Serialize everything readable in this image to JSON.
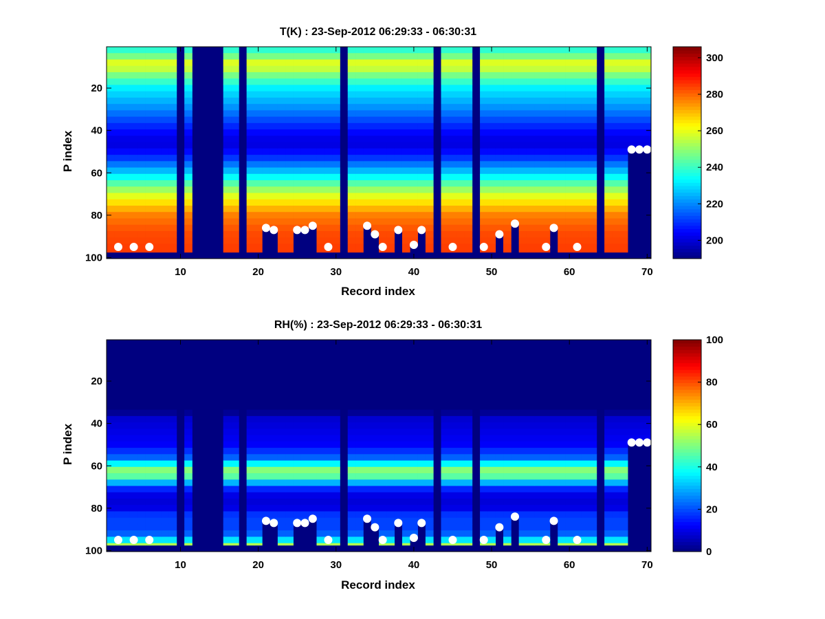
{
  "figure": {
    "background": "#ffffff",
    "colormap": "jet"
  },
  "chart_data": [
    {
      "type": "heatmap",
      "title": "T(K) : 23-Sep-2012 06:29:33 - 06:30:31",
      "xlabel": "Record index",
      "ylabel": "P index",
      "xlim": [
        0.5,
        70.5
      ],
      "ylim": [
        0.5,
        100.5
      ],
      "y_reversed": true,
      "x_ticks": [
        "10",
        "20",
        "30",
        "40",
        "50",
        "60",
        "70"
      ],
      "y_ticks": [
        "20",
        "40",
        "60",
        "80",
        "100"
      ],
      "profile_by_p_index": [
        [
          1,
          236
        ],
        [
          6,
          250
        ],
        [
          9,
          263
        ],
        [
          12,
          252
        ],
        [
          20,
          232
        ],
        [
          30,
          220
        ],
        [
          40,
          206
        ],
        [
          46,
          200
        ],
        [
          52,
          208
        ],
        [
          60,
          228
        ],
        [
          66,
          246
        ],
        [
          72,
          262
        ],
        [
          80,
          277
        ],
        [
          88,
          283
        ],
        [
          98,
          285
        ]
      ],
      "missing_records": [
        10,
        12,
        13,
        14,
        15,
        18,
        31,
        43,
        48,
        64
      ],
      "surface_p_index_by_record": [
        97,
        97,
        97,
        97,
        97,
        97,
        97,
        97,
        97,
        0,
        97,
        0,
        0,
        0,
        0,
        97,
        97,
        0,
        97,
        97,
        86,
        87,
        97,
        97,
        87,
        87,
        85,
        97,
        97,
        97,
        0,
        97,
        97,
        85,
        89,
        97,
        97,
        87,
        97,
        94,
        87,
        97,
        0,
        97,
        97,
        97,
        97,
        0,
        97,
        97,
        89,
        97,
        84,
        97,
        97,
        97,
        97,
        86,
        97,
        97,
        97,
        97,
        97,
        0,
        97,
        97,
        97,
        49,
        49,
        49
      ],
      "marker_points": [
        [
          2,
          95
        ],
        [
          4,
          95
        ],
        [
          6,
          95
        ],
        [
          21,
          86
        ],
        [
          22,
          87
        ],
        [
          25,
          87
        ],
        [
          26,
          87
        ],
        [
          27,
          85
        ],
        [
          29,
          95
        ],
        [
          34,
          85
        ],
        [
          35,
          89
        ],
        [
          36,
          95
        ],
        [
          38,
          87
        ],
        [
          40,
          94
        ],
        [
          41,
          87
        ],
        [
          45,
          95
        ],
        [
          49,
          95
        ],
        [
          51,
          89
        ],
        [
          53,
          84
        ],
        [
          57,
          95
        ],
        [
          58,
          86
        ],
        [
          61,
          95
        ],
        [
          68,
          49
        ],
        [
          69,
          49
        ],
        [
          70,
          49
        ]
      ],
      "colorbar": {
        "clim": [
          190,
          306
        ],
        "ticks": [
          "200",
          "220",
          "240",
          "260",
          "280",
          "300"
        ]
      }
    },
    {
      "type": "heatmap",
      "title": "RH(%) : 23-Sep-2012 06:29:33 - 06:30:31",
      "xlabel": "Record index",
      "ylabel": "P index",
      "xlim": [
        0.5,
        70.5
      ],
      "ylim": [
        0.5,
        100.5
      ],
      "y_reversed": true,
      "x_ticks": [
        "10",
        "20",
        "30",
        "40",
        "50",
        "60",
        "70"
      ],
      "y_ticks": [
        "20",
        "40",
        "60",
        "80",
        "100"
      ],
      "profile_by_p_index": [
        [
          1,
          0
        ],
        [
          34,
          0
        ],
        [
          38,
          8
        ],
        [
          44,
          10
        ],
        [
          50,
          12
        ],
        [
          56,
          22
        ],
        [
          60,
          42
        ],
        [
          63,
          55
        ],
        [
          66,
          42
        ],
        [
          70,
          18
        ],
        [
          75,
          8
        ],
        [
          80,
          10
        ],
        [
          84,
          20
        ],
        [
          88,
          18
        ],
        [
          92,
          22
        ],
        [
          95,
          35
        ],
        [
          98,
          65
        ]
      ],
      "missing_records": [
        10,
        12,
        13,
        14,
        15,
        18,
        31,
        43,
        48,
        64
      ],
      "surface_p_index_by_record": [
        97,
        97,
        97,
        97,
        97,
        97,
        97,
        97,
        97,
        0,
        97,
        0,
        0,
        0,
        0,
        97,
        97,
        0,
        97,
        97,
        86,
        87,
        97,
        97,
        87,
        87,
        85,
        97,
        97,
        97,
        0,
        97,
        97,
        85,
        89,
        97,
        97,
        87,
        97,
        94,
        87,
        97,
        0,
        97,
        97,
        97,
        97,
        0,
        97,
        97,
        89,
        97,
        84,
        97,
        97,
        97,
        97,
        86,
        97,
        97,
        97,
        97,
        97,
        0,
        97,
        97,
        97,
        49,
        49,
        49
      ],
      "marker_points": [
        [
          2,
          95
        ],
        [
          4,
          95
        ],
        [
          6,
          95
        ],
        [
          21,
          86
        ],
        [
          22,
          87
        ],
        [
          25,
          87
        ],
        [
          26,
          87
        ],
        [
          27,
          85
        ],
        [
          29,
          95
        ],
        [
          34,
          85
        ],
        [
          35,
          89
        ],
        [
          36,
          95
        ],
        [
          38,
          87
        ],
        [
          40,
          94
        ],
        [
          41,
          87
        ],
        [
          45,
          95
        ],
        [
          49,
          95
        ],
        [
          51,
          89
        ],
        [
          53,
          84
        ],
        [
          57,
          95
        ],
        [
          58,
          86
        ],
        [
          61,
          95
        ],
        [
          68,
          49
        ],
        [
          69,
          49
        ],
        [
          70,
          49
        ]
      ],
      "colorbar": {
        "clim": [
          0,
          100
        ],
        "ticks": [
          "0",
          "20",
          "40",
          "60",
          "80",
          "100"
        ]
      }
    }
  ]
}
